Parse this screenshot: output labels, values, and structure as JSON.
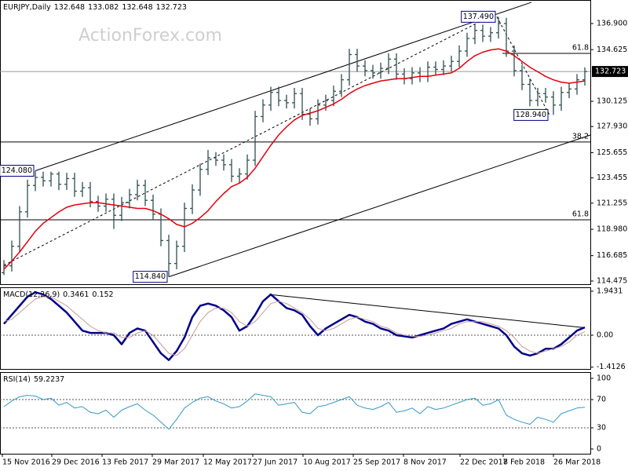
{
  "chart_data": [
    {
      "type": "ohlc",
      "title": "EURJPY,Daily",
      "header_values": [
        132.648,
        133.082,
        132.648,
        132.723
      ],
      "watermark": "ActionForex.com",
      "color": "#2f4f4f",
      "last": 132.723,
      "xlim": [
        -0.5,
        74.7
      ],
      "ylim": [
        114.2,
        138.95
      ],
      "yticks": [
        {
          "value": 136.9,
          "label": "136.900"
        },
        {
          "value": 134.625,
          "label": "134.625"
        },
        {
          "value": 130.125,
          "label": "130.125"
        },
        {
          "value": 127.93,
          "label": "127.930"
        },
        {
          "value": 125.655,
          "label": "125.655"
        },
        123.455,
        {
          "value": 121.255,
          "label": "121.255"
        },
        {
          "value": 118.98,
          "label": "118.980"
        },
        {
          "value": 116.685,
          "label": "116.685"
        },
        114.475
      ],
      "open": [
        115.2,
        115.8,
        117.5,
        120.5,
        122.8,
        123.5,
        123.2,
        123.8,
        122.9,
        123.4,
        122.3,
        122.6,
        121.4,
        121.0,
        121.6,
        120.2,
        121.3,
        122.0,
        122.8,
        121.5,
        120.3,
        118.0,
        116.0,
        117.5,
        120.8,
        122.4,
        124.2,
        125.2,
        125.0,
        124.6,
        123.6,
        123.8,
        125.0,
        128.8,
        129.8,
        130.9,
        130.2,
        130.0,
        130.8,
        129.0,
        128.6,
        129.8,
        130.2,
        131.0,
        132.0,
        134.2,
        133.2,
        132.8,
        132.6,
        133.0,
        133.8,
        132.5,
        132.1,
        132.6,
        132.3,
        133.1,
        132.9,
        133.2,
        133.6,
        134.5,
        135.6,
        136.3,
        135.8,
        136.1,
        136.9,
        134.5,
        132.8,
        131.6,
        130.2,
        130.8,
        130.5,
        129.8,
        130.9,
        131.2,
        132.0
      ],
      "high": [
        116.3,
        118.0,
        121.0,
        123.3,
        124.08,
        124.0,
        124.0,
        124.0,
        123.9,
        123.9,
        123.1,
        123.1,
        121.9,
        122.1,
        122.1,
        121.8,
        122.5,
        123.3,
        123.3,
        122.0,
        120.8,
        118.5,
        118.0,
        121.3,
        122.9,
        124.7,
        125.9,
        125.7,
        125.5,
        125.1,
        124.3,
        125.5,
        129.3,
        130.3,
        131.4,
        131.4,
        130.7,
        131.3,
        131.3,
        129.5,
        130.3,
        130.7,
        131.5,
        132.5,
        134.7,
        134.7,
        133.7,
        133.3,
        133.5,
        134.3,
        134.3,
        133.0,
        133.1,
        133.1,
        133.6,
        133.6,
        133.7,
        134.1,
        135.0,
        136.1,
        136.8,
        136.8,
        136.6,
        137.49,
        137.4,
        135.0,
        133.3,
        132.1,
        131.3,
        131.3,
        131.0,
        131.4,
        131.7,
        132.5,
        133.082
      ],
      "low": [
        115.0,
        115.3,
        117.0,
        120.0,
        122.3,
        122.7,
        122.7,
        122.4,
        122.4,
        121.8,
        121.8,
        120.9,
        120.5,
        120.5,
        119.0,
        119.7,
        120.8,
        121.5,
        121.0,
        119.8,
        117.5,
        114.84,
        115.5,
        117.0,
        120.3,
        121.9,
        123.7,
        124.5,
        124.1,
        123.1,
        123.0,
        123.3,
        124.5,
        128.3,
        129.3,
        129.7,
        129.5,
        129.5,
        128.5,
        128.0,
        128.1,
        129.3,
        129.7,
        130.5,
        131.5,
        132.7,
        132.3,
        132.1,
        132.1,
        132.5,
        132.0,
        131.6,
        131.6,
        131.8,
        131.8,
        132.4,
        132.4,
        132.7,
        133.1,
        134.0,
        135.1,
        135.3,
        135.3,
        135.6,
        134.0,
        132.3,
        131.1,
        129.7,
        129.7,
        130.0,
        128.94,
        129.3,
        130.4,
        130.7,
        131.5
      ],
      "close": [
        115.8,
        117.5,
        120.5,
        122.8,
        123.5,
        123.2,
        123.8,
        122.9,
        123.4,
        122.3,
        122.6,
        121.4,
        121.0,
        121.6,
        120.2,
        121.3,
        122.0,
        122.8,
        121.5,
        120.3,
        118.0,
        116.0,
        117.5,
        120.8,
        122.4,
        124.2,
        125.2,
        125.0,
        124.6,
        123.6,
        123.8,
        125.0,
        128.8,
        129.8,
        130.9,
        130.2,
        130.0,
        130.8,
        129.0,
        128.6,
        129.8,
        130.2,
        131.0,
        132.0,
        134.2,
        133.2,
        132.8,
        132.6,
        133.0,
        133.8,
        132.5,
        132.1,
        132.6,
        132.3,
        133.1,
        132.9,
        133.2,
        133.6,
        134.5,
        135.6,
        136.3,
        135.8,
        136.1,
        136.9,
        134.5,
        132.8,
        131.6,
        130.2,
        130.8,
        130.5,
        129.8,
        130.9,
        131.2,
        132.0,
        132.723
      ],
      "series": [
        {
          "color": "#e3000f",
          "values": [
            115.5,
            116.2,
            117.0,
            117.9,
            118.8,
            119.5,
            120.0,
            120.5,
            120.9,
            121.1,
            121.2,
            121.3,
            121.3,
            121.2,
            121.1,
            121.0,
            120.9,
            120.8,
            120.8,
            120.6,
            120.3,
            119.9,
            119.4,
            119.2,
            119.5,
            120.0,
            120.6,
            121.4,
            122.1,
            122.7,
            123.0,
            123.5,
            124.3,
            125.3,
            126.3,
            127.2,
            127.9,
            128.5,
            128.9,
            129.1,
            129.3,
            129.6,
            129.9,
            130.3,
            130.8,
            131.2,
            131.5,
            131.7,
            131.9,
            132.0,
            132.1,
            132.1,
            132.2,
            132.3,
            132.3,
            132.4,
            132.5,
            132.6,
            133.0,
            133.6,
            134.1,
            134.4,
            134.6,
            134.7,
            134.5,
            134.1,
            133.6,
            133.1,
            132.7,
            132.3,
            132.0,
            131.8,
            131.7,
            131.8,
            131.9
          ]
        }
      ],
      "trendlines": [
        {
          "x": [
            4,
            67.2
          ],
          "y": [
            124.08,
            138.75
          ],
          "dashed": false
        },
        {
          "x": [
            0,
            62.5
          ],
          "y": [
            115.85,
            137.72
          ],
          "dashed": true
        },
        {
          "x": [
            21,
            74.7
          ],
          "y": [
            114.84,
            127.19
          ],
          "dashed": false
        },
        {
          "x": [
            62.8,
            69.5
          ],
          "y": [
            137.49,
            128.94
          ],
          "dashed": true
        }
      ],
      "levels": [
        {
          "label": "61.8",
          "value": 134.3,
          "x0": 63.5
        },
        {
          "label": "38.2",
          "value": 126.58
        },
        {
          "label": "61.8",
          "value": 119.81
        }
      ],
      "point_labels": [
        {
          "x": 62.8,
          "value": 137.49,
          "label": "137.490"
        },
        {
          "x": 69.5,
          "value": 128.94,
          "label": "128.940"
        },
        {
          "x": 21,
          "value": 114.84,
          "label": "114.840"
        },
        {
          "x": 4,
          "value": 124.08,
          "label": "124.080"
        }
      ]
    },
    {
      "type": "line",
      "title": "MACD(12,26,9)",
      "header_values": [
        0.3461,
        0.152
      ],
      "xlim": [
        -0.5,
        74.7
      ],
      "ylim": [
        -1.492,
        2.117
      ],
      "yticks": [
        1.9431,
        {
          "value": 0,
          "label": "0.00"
        },
        -1.4126
      ],
      "hlines": [
        0
      ],
      "series": [
        {
          "color": "#00008b",
          "width": 2.5,
          "values": [
            0.5,
            0.9,
            1.3,
            1.7,
            1.9,
            1.8,
            1.6,
            1.3,
            1.0,
            0.6,
            0.2,
            0.1,
            0.1,
            0.1,
            0.0,
            -0.4,
            0.1,
            0.3,
            0.2,
            -0.3,
            -0.8,
            -1.1,
            -0.7,
            -0.1,
            0.8,
            1.3,
            1.4,
            1.3,
            1.1,
            0.8,
            0.2,
            0.4,
            0.9,
            1.5,
            1.8,
            1.5,
            1.2,
            1.1,
            0.9,
            0.4,
            0.0,
            0.3,
            0.5,
            0.7,
            0.9,
            0.8,
            0.6,
            0.5,
            0.3,
            0.2,
            0.0,
            -0.05,
            -0.1,
            0.0,
            0.1,
            0.2,
            0.3,
            0.5,
            0.6,
            0.7,
            0.6,
            0.5,
            0.4,
            0.3,
            0.0,
            -0.5,
            -0.8,
            -0.9,
            -0.8,
            -0.6,
            -0.6,
            -0.4,
            -0.1,
            0.2,
            0.3461
          ]
        },
        {
          "color": "#c99a9a",
          "width": 1,
          "values": [
            0.6,
            0.7,
            1.0,
            1.3,
            1.6,
            1.7,
            1.7,
            1.5,
            1.3,
            1.0,
            0.7,
            0.4,
            0.2,
            0.1,
            0.1,
            -0.1,
            -0.1,
            0.1,
            0.2,
            0.0,
            -0.4,
            -0.8,
            -0.9,
            -0.6,
            0.0,
            0.6,
            1.0,
            1.2,
            1.2,
            1.0,
            0.6,
            0.4,
            0.6,
            1.0,
            1.4,
            1.5,
            1.4,
            1.2,
            1.0,
            0.7,
            0.3,
            0.2,
            0.3,
            0.5,
            0.7,
            0.8,
            0.7,
            0.6,
            0.4,
            0.3,
            0.1,
            0.0,
            -0.05,
            -0.05,
            0.0,
            0.1,
            0.2,
            0.3,
            0.5,
            0.6,
            0.6,
            0.6,
            0.5,
            0.4,
            0.2,
            -0.1,
            -0.5,
            -0.7,
            -0.8,
            -0.7,
            -0.6,
            -0.5,
            -0.3,
            0.0,
            0.152
          ]
        }
      ],
      "trendlines": [
        {
          "x": [
            33.8,
            74
          ],
          "y": [
            1.8,
            0.33
          ],
          "dashed": false
        }
      ]
    },
    {
      "type": "line",
      "title": "RSI(14)",
      "header_values": [
        59.2237
      ],
      "xlim": [
        -0.5,
        74.7
      ],
      "ylim": [
        -6.7,
        108.9
      ],
      "yticks": [
        100,
        70,
        30,
        0
      ],
      "hlines": [
        70,
        30
      ],
      "series": [
        {
          "color": "#3399cc",
          "width": 1,
          "values": [
            60,
            68,
            74,
            76,
            75,
            70,
            72,
            62,
            66,
            58,
            60,
            52,
            50,
            55,
            45,
            55,
            60,
            64,
            55,
            48,
            38,
            28,
            42,
            58,
            66,
            72,
            74,
            68,
            64,
            58,
            60,
            68,
            78,
            76,
            74,
            62,
            64,
            66,
            52,
            50,
            60,
            62,
            66,
            70,
            74,
            62,
            58,
            56,
            60,
            66,
            52,
            54,
            58,
            50,
            60,
            56,
            58,
            62,
            66,
            70,
            72,
            62,
            64,
            70,
            48,
            42,
            38,
            35,
            45,
            42,
            38,
            50,
            54,
            58,
            59.2237
          ]
        }
      ],
      "xticks": [
        {
          "value": -0.2,
          "label": "15 Nov 2016"
        },
        {
          "value": 6.1,
          "label": "29 Dec 2016"
        },
        {
          "value": 12.5,
          "label": "13 Feb 2017"
        },
        {
          "value": 18.9,
          "label": "29 Mar 2017"
        },
        {
          "value": 25.4,
          "label": "12 May 2017"
        },
        {
          "value": 31.7,
          "label": "27 Jun 2017"
        },
        {
          "value": 38.1,
          "label": "10 Aug 2017"
        },
        {
          "value": 44.5,
          "label": "25 Sep 2017"
        },
        {
          "value": 50.9,
          "label": "8 Nov 2017"
        },
        {
          "value": 58.1,
          "label": "22 Dec 2017"
        },
        {
          "value": 63.6,
          "label": "8 Feb 2018"
        },
        {
          "value": 70,
          "label": "26 Mar 2018"
        }
      ]
    }
  ]
}
